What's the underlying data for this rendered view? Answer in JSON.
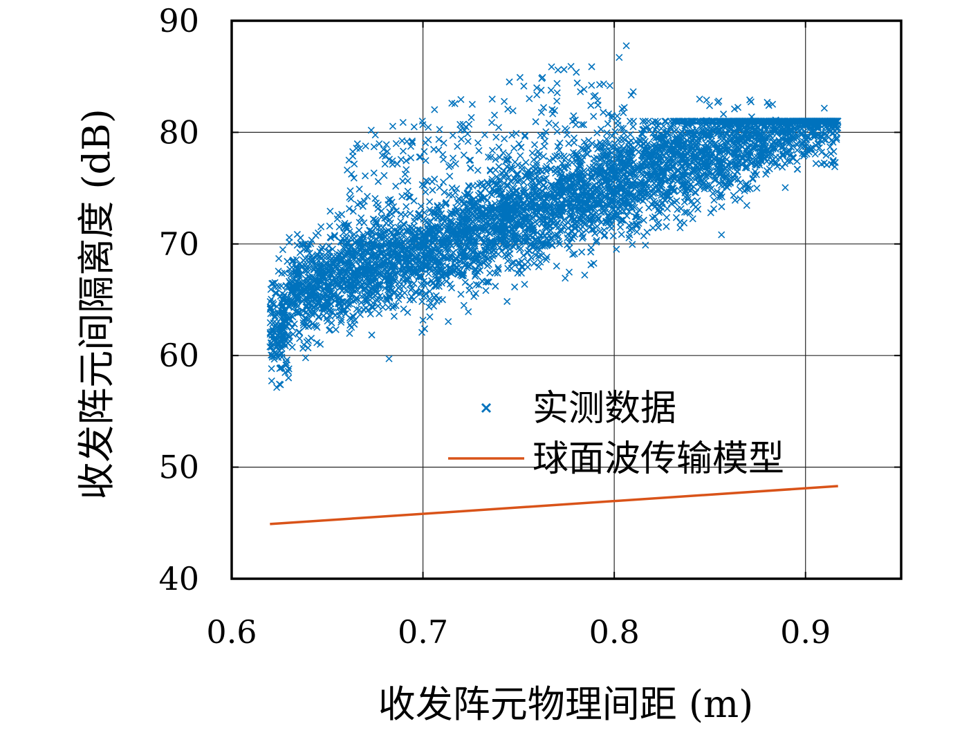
{
  "chart_data": {
    "type": "scatter",
    "xlabel": "收发阵元物理间距 (m)",
    "ylabel": "收发阵元间隔离度 (dB)",
    "xlim": [
      0.6,
      0.95
    ],
    "ylim": [
      40,
      90
    ],
    "x_ticks": [
      0.6,
      0.7,
      0.8,
      0.9
    ],
    "x_tick_labels": [
      "0.6",
      "0.7",
      "0.8",
      "0.9"
    ],
    "y_ticks": [
      40,
      50,
      60,
      70,
      80,
      90
    ],
    "y_tick_labels": [
      "40",
      "50",
      "60",
      "70",
      "80",
      "90"
    ],
    "grid": true,
    "legend_position": "center-right",
    "series": [
      {
        "name": "实测数据",
        "kind": "scatter",
        "marker": "x",
        "color": "#0072BD",
        "x_range": [
          0.62,
          0.917
        ],
        "trend": {
          "slope": 60,
          "intercept": 27.5
        },
        "spread_db": 5,
        "point_count": 5000,
        "outlier_band": {
          "x_range": [
            0.66,
            0.81
          ],
          "y_range": [
            72,
            89
          ]
        }
      },
      {
        "name": "球面波传输模型",
        "kind": "line",
        "color": "#D95319",
        "x": [
          0.62,
          0.917
        ],
        "y": [
          44.9,
          48.3
        ]
      }
    ]
  }
}
